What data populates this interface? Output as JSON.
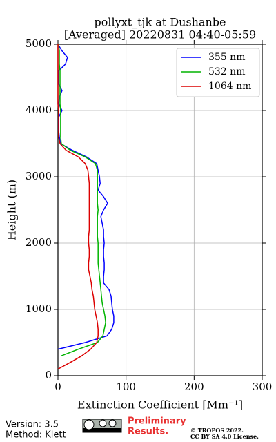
{
  "chart_data": {
    "type": "profile",
    "title": [
      "pollyxt_tjk at Dushanbe",
      "[Averaged] 20220831 04:40-05:59"
    ],
    "x_label": "Extinction Coefficient [Mm⁻¹]",
    "y_label": "Height (m)",
    "xlim": [
      0,
      300
    ],
    "xticks": [
      0,
      100,
      200,
      300
    ],
    "ylim": [
      0,
      5000
    ],
    "yticks": [
      0,
      1000,
      2000,
      3000,
      4000,
      5000
    ],
    "grid": true,
    "legend": "upper right",
    "y": [
      100,
      200,
      300,
      400,
      500,
      600,
      700,
      800,
      900,
      1000,
      1100,
      1200,
      1300,
      1400,
      1500,
      1600,
      1700,
      1800,
      1900,
      2000,
      2100,
      2200,
      2300,
      2400,
      2500,
      2600,
      2700,
      2800,
      2900,
      3000,
      3100,
      3200,
      3300,
      3400,
      3500,
      3600,
      3700,
      3800,
      3900,
      4000,
      4100,
      4200,
      4300,
      4400,
      4500,
      4600,
      4700,
      4800,
      4900,
      5000
    ],
    "series": [
      {
        "name": "355 nm",
        "color": "#0000ff",
        "values": [
          null,
          null,
          null,
          0,
          40,
          72,
          79,
          82,
          82,
          80,
          79,
          78,
          75,
          67,
          67,
          68,
          68,
          67,
          67,
          68,
          67,
          67,
          65,
          63,
          67,
          73,
          67,
          59,
          62,
          61,
          59,
          57,
          42,
          21,
          4,
          2,
          1,
          1,
          1,
          6,
          1,
          2,
          6,
          1,
          1,
          1,
          11,
          14,
          6,
          0
        ]
      },
      {
        "name": "532 nm",
        "color": "#00b400",
        "values": [
          null,
          null,
          5,
          30,
          58,
          66,
          68,
          70,
          69,
          67,
          65,
          64,
          63,
          62,
          61,
          60,
          59,
          59,
          59,
          59,
          58,
          58,
          58,
          58,
          59,
          58,
          58,
          58,
          58,
          58,
          58,
          55,
          40,
          18,
          5,
          4,
          4,
          4,
          4,
          4,
          3,
          3,
          3,
          3,
          3,
          3,
          2,
          2,
          2,
          1
        ]
      },
      {
        "name": "1064 nm",
        "color": "#dc0000",
        "values": [
          0,
          18,
          35,
          48,
          57,
          59,
          59,
          58,
          56,
          54,
          53,
          52,
          50,
          49,
          47,
          45,
          45,
          46,
          46,
          45,
          45,
          46,
          46,
          46,
          46,
          46,
          46,
          46,
          46,
          45,
          44,
          40,
          30,
          12,
          3,
          1,
          1,
          1,
          1,
          1,
          0,
          0,
          0,
          0,
          0,
          0,
          0,
          0,
          0,
          0
        ]
      }
    ]
  },
  "footer": {
    "version": "Version: 3.5",
    "method": "Method: Klett",
    "status": [
      "Preliminary",
      "Results."
    ],
    "copyright": [
      "© TROPOS 2022.",
      "CC BY SA 4.0 License."
    ]
  }
}
